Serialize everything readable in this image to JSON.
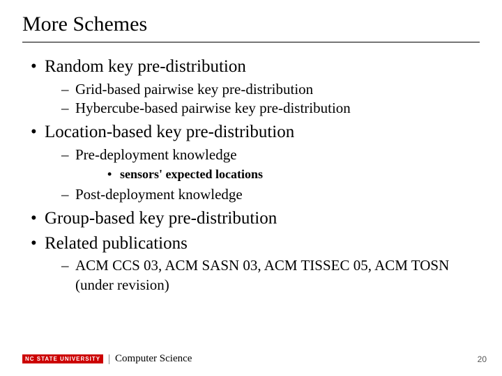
{
  "title": "More Schemes",
  "bullets": {
    "b1": "Random key pre-distribution",
    "b1_1": "Grid-based pairwise key pre-distribution",
    "b1_2": "Hybercube-based pairwise key pre-distribution",
    "b2": "Location-based key pre-distribution",
    "b2_1": "Pre-deployment knowledge",
    "b2_1_1": "sensors' expected locations",
    "b2_2": "Post-deployment knowledge",
    "b3": "Group-based key pre-distribution",
    "b4": "Related publications",
    "b4_1": "ACM CCS 03, ACM SASN 03, ACM TISSEC 05, ACM TOSN (under revision)"
  },
  "footer": {
    "logo_text": "NC STATE UNIVERSITY",
    "dept": "Computer Science",
    "page": "20"
  },
  "colors": {
    "logo_bg": "#cc0000",
    "logo_fg": "#ffffff",
    "text": "#000000",
    "bg": "#ffffff"
  }
}
